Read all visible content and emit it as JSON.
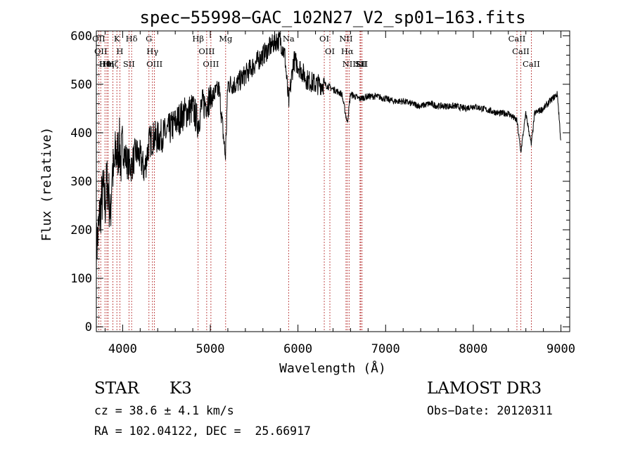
{
  "chart_data": {
    "type": "line",
    "title": "spec−55998−GAC_102N27_V2_sp01−163.fits",
    "xlabel": "Wavelength (Å)",
    "ylabel": "Flux (relative)",
    "xlim": [
      3700,
      9100
    ],
    "ylim": [
      -10,
      610
    ],
    "xticks": [
      4000,
      5000,
      6000,
      7000,
      8000,
      9000
    ],
    "yticks": [
      0,
      100,
      200,
      300,
      400,
      500,
      600
    ],
    "series": [
      {
        "name": "flux",
        "x": [
          3700,
          3720,
          3740,
          3760,
          3780,
          3800,
          3820,
          3840,
          3860,
          3880,
          3900,
          3920,
          3940,
          3960,
          3980,
          4000,
          4050,
          4100,
          4150,
          4200,
          4250,
          4300,
          4350,
          4400,
          4500,
          4600,
          4700,
          4800,
          4861,
          4900,
          5000,
          5100,
          5172,
          5200,
          5300,
          5400,
          5500,
          5600,
          5700,
          5750,
          5800,
          5850,
          5893,
          5950,
          6000,
          6100,
          6200,
          6300,
          6400,
          6500,
          6563,
          6600,
          6700,
          6800,
          6900,
          7000,
          7100,
          7200,
          7300,
          7400,
          7500,
          7600,
          7700,
          7800,
          7900,
          8000,
          8100,
          8200,
          8300,
          8400,
          8498,
          8542,
          8600,
          8662,
          8700,
          8800,
          8900,
          8960,
          9000
        ],
        "y": [
          160,
          190,
          230,
          260,
          280,
          250,
          300,
          280,
          220,
          330,
          310,
          360,
          350,
          380,
          340,
          370,
          340,
          330,
          360,
          350,
          320,
          380,
          390,
          390,
          400,
          420,
          440,
          450,
          420,
          455,
          470,
          490,
          350,
          500,
          500,
          520,
          540,
          560,
          580,
          590,
          590,
          560,
          460,
          550,
          540,
          510,
          500,
          500,
          490,
          480,
          420,
          480,
          470,
          475,
          475,
          470,
          465,
          465,
          460,
          455,
          460,
          455,
          455,
          455,
          450,
          455,
          450,
          445,
          440,
          440,
          425,
          360,
          440,
          375,
          440,
          450,
          470,
          480,
          380
        ]
      }
    ],
    "lines": [
      {
        "wavelength": 3727,
        "label": "OII"
      },
      {
        "wavelength": 3750,
        "label": "OII"
      },
      {
        "wavelength": 3798,
        "label": "Hθ"
      },
      {
        "wavelength": 3820,
        "label": "HeI"
      },
      {
        "wavelength": 3835,
        "label": "Hη"
      },
      {
        "wavelength": 3889,
        "label": "Hζ"
      },
      {
        "wavelength": 3934,
        "label": "K"
      },
      {
        "wavelength": 3968,
        "label": "H"
      },
      {
        "wavelength": 4072,
        "label": "SII"
      },
      {
        "wavelength": 4102,
        "label": "Hδ"
      },
      {
        "wavelength": 4300,
        "label": "G"
      },
      {
        "wavelength": 4340,
        "label": "Hγ"
      },
      {
        "wavelength": 4363,
        "label": "OIII"
      },
      {
        "wavelength": 4861,
        "label": "Hβ"
      },
      {
        "wavelength": 4959,
        "label": "OIII"
      },
      {
        "wavelength": 5007,
        "label": "OIII"
      },
      {
        "wavelength": 5175,
        "label": "Mg"
      },
      {
        "wavelength": 5893,
        "label": "Na"
      },
      {
        "wavelength": 6300,
        "label": "OI"
      },
      {
        "wavelength": 6364,
        "label": "OI"
      },
      {
        "wavelength": 6548,
        "label": "NII"
      },
      {
        "wavelength": 6563,
        "label": "Hα"
      },
      {
        "wavelength": 6583,
        "label": "NII"
      },
      {
        "wavelength": 6708,
        "label": "Li"
      },
      {
        "wavelength": 6716,
        "label": "SII"
      },
      {
        "wavelength": 6731,
        "label": "SII"
      },
      {
        "wavelength": 8498,
        "label": "CaII"
      },
      {
        "wavelength": 8542,
        "label": "CaII"
      },
      {
        "wavelength": 8662,
        "label": "CaII"
      }
    ]
  },
  "info": {
    "class": "STAR",
    "subclass": "K3",
    "survey": "LAMOST DR3",
    "cz": "cz = 38.6 ± 4.1 km/s",
    "obs_date": "Obs−Date: 20120311",
    "radec": "RA = 102.04122, DEC =  25.66917"
  },
  "colors": {
    "line_marker": "#b22222",
    "axis": "#000000",
    "spectrum": "#000000"
  }
}
